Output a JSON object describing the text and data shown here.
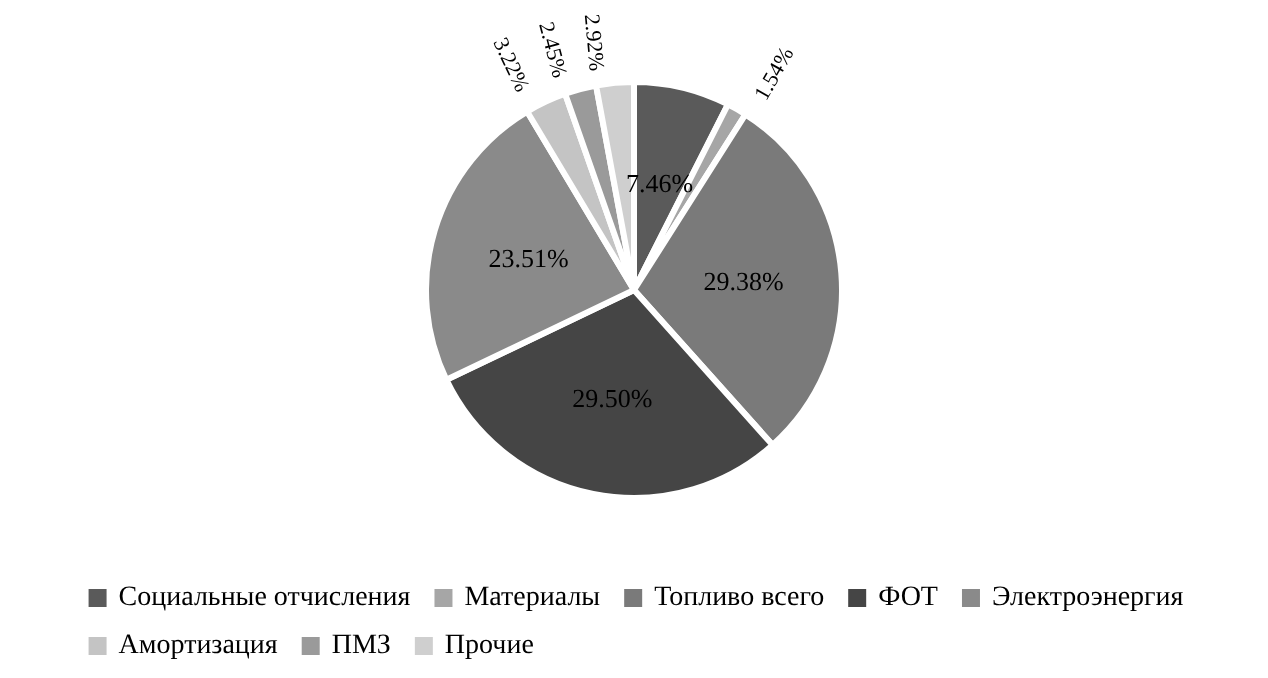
{
  "chart_data": {
    "type": "pie",
    "categories": [
      "Социальные отчисления",
      "Материалы",
      "Топливо всего",
      "ФОТ",
      "Электроэнергия",
      "Амортизация",
      "ПМЗ",
      "Прочие"
    ],
    "values": [
      7.46,
      1.54,
      29.38,
      29.5,
      23.51,
      3.22,
      2.45,
      2.92
    ],
    "value_labels": [
      "7.46%",
      "1.54%",
      "29.38%",
      "29.50%",
      "23.51%",
      "3.22%",
      "2.45%",
      "2.92%"
    ],
    "colors": [
      "#5a5a5a",
      "#a6a6a6",
      "#7a7a7a",
      "#454545",
      "#8a8a8a",
      "#c4c4c4",
      "#9a9a9a",
      "#cfcfcf"
    ],
    "legend": "bottom"
  }
}
